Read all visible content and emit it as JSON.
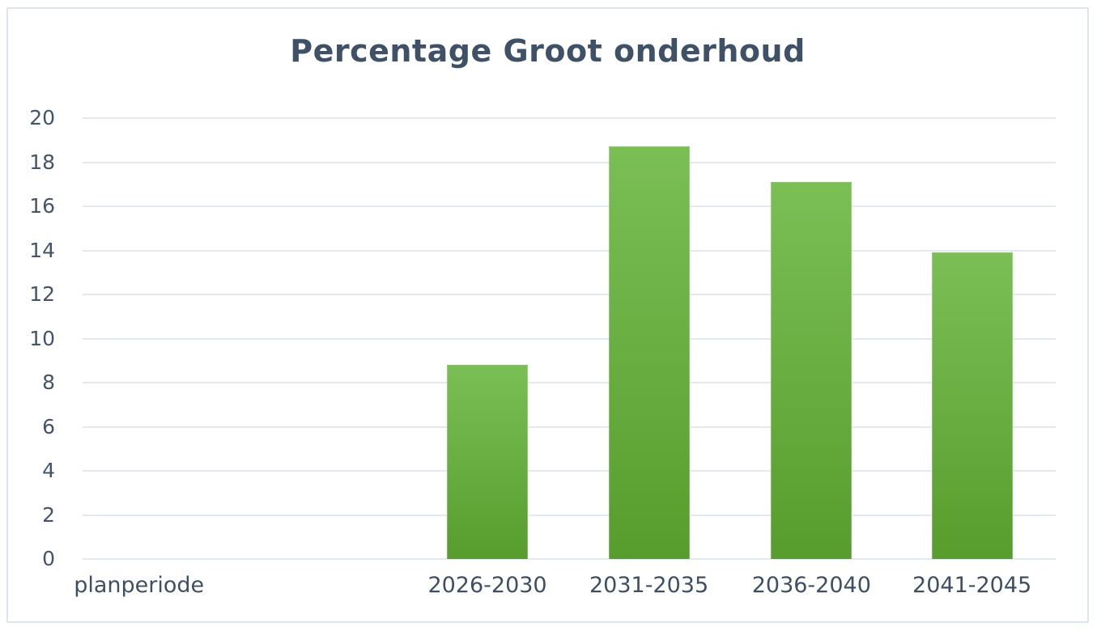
{
  "chart_data": {
    "type": "bar",
    "title": "Percentage Groot onderhoud",
    "categories": [
      "planperiode",
      "2026-2030",
      "2031-2035",
      "2036-2040",
      "2041-2045"
    ],
    "values": [
      null,
      8.8,
      18.7,
      17.1,
      13.9
    ],
    "xlabel": "",
    "ylabel": "",
    "ylim": [
      0,
      20
    ],
    "yticks": [
      0,
      2,
      4,
      6,
      8,
      10,
      12,
      14,
      16,
      18,
      20
    ],
    "grid": true,
    "legend": false,
    "colors": {
      "bar_gradient_top": "#7abf55",
      "bar_gradient_bottom": "#579d2d",
      "gridline": "#e4e9f0",
      "title_text": "#3e5166",
      "tick_text": "#44546a",
      "x_label_text": "#3f4f63",
      "card_border": "#dee4ec",
      "background": "#ffffff"
    }
  }
}
